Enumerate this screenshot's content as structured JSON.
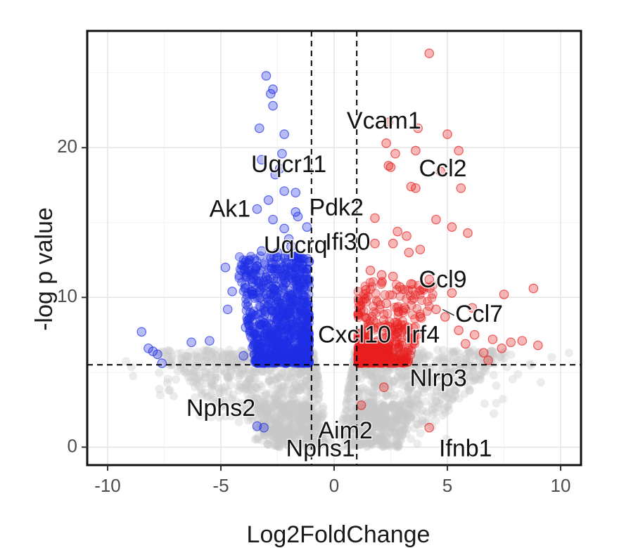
{
  "chart_data": {
    "type": "scatter",
    "xlabel": "Log2FoldChange",
    "ylabel": "-log p value",
    "xlim": [
      -10.9,
      10.9
    ],
    "ylim": [
      -1.2,
      27.8
    ],
    "x_ticks": [
      -10,
      -5,
      0,
      5,
      10
    ],
    "x_tick_labels": [
      "-10",
      "-5",
      "0",
      "5",
      "10"
    ],
    "y_ticks": [
      0,
      10,
      20
    ],
    "y_tick_labels": [
      "0",
      "10",
      "20"
    ],
    "grid": true,
    "thresholds": {
      "x": [
        -1,
        1
      ],
      "y": 5.5
    },
    "colors": {
      "down": "#1f2fe6",
      "up": "#e81e1e",
      "ns": "#c8c8c8"
    },
    "series": [
      {
        "group": "down",
        "points": [
          [
            -3.0,
            24.8
          ],
          [
            -2.7,
            23.9
          ],
          [
            -2.8,
            23.6
          ],
          [
            -2.7,
            22.8
          ],
          [
            -3.3,
            21.3
          ],
          [
            -2.2,
            20.9
          ],
          [
            -2.3,
            19.6
          ],
          [
            -3.2,
            19.2
          ],
          [
            -2.4,
            18.6
          ],
          [
            -2.6,
            18.2
          ],
          [
            -1.7,
            17.0
          ],
          [
            -2.2,
            17.1
          ],
          [
            -2.9,
            16.5
          ],
          [
            -3.4,
            15.9
          ],
          [
            -1.7,
            15.7
          ],
          [
            -1.6,
            15.4
          ],
          [
            -2.7,
            15.2
          ],
          [
            -2.2,
            14.6
          ],
          [
            -1.2,
            14.7
          ],
          [
            -2.0,
            13.9
          ],
          [
            -1.9,
            13.4
          ],
          [
            -3.2,
            13.1
          ],
          [
            -2.5,
            13.0
          ],
          [
            -1.5,
            12.6
          ],
          [
            -1.1,
            12.4
          ],
          [
            -3.4,
            12.1
          ],
          [
            -3.8,
            12.3
          ],
          [
            -4.8,
            12.0
          ],
          [
            -2.6,
            11.8
          ],
          [
            -1.9,
            11.7
          ],
          [
            -3.6,
            11.0
          ],
          [
            -2.7,
            10.6
          ],
          [
            -1.6,
            10.6
          ],
          [
            -4.5,
            10.4
          ],
          [
            -3.0,
            10.2
          ],
          [
            -2.2,
            10.0
          ],
          [
            -4.7,
            9.2
          ],
          [
            -3.7,
            9.0
          ],
          [
            -1.3,
            9.1
          ],
          [
            -2.4,
            8.7
          ],
          [
            -3.1,
            8.3
          ],
          [
            -1.8,
            8.2
          ],
          [
            -3.9,
            8.0
          ],
          [
            -2.0,
            7.5
          ],
          [
            -1.2,
            7.6
          ],
          [
            -2.9,
            7.3
          ],
          [
            -5.5,
            7.1
          ],
          [
            -3.5,
            6.9
          ],
          [
            -2.3,
            6.6
          ],
          [
            -1.5,
            6.4
          ],
          [
            -4.0,
            6.1
          ],
          [
            -2.7,
            6.0
          ],
          [
            -1.9,
            5.9
          ],
          [
            -3.2,
            5.8
          ],
          [
            -8.5,
            7.7
          ],
          [
            -8.2,
            6.6
          ],
          [
            -8.0,
            6.4
          ],
          [
            -7.8,
            6.2
          ],
          [
            -7.6,
            5.6
          ],
          [
            -6.3,
            7.0
          ],
          [
            -3.1,
            1.3
          ],
          [
            -3.4,
            1.4
          ]
        ]
      },
      {
        "group": "up",
        "points": [
          [
            4.2,
            26.3
          ],
          [
            2.4,
            21.7
          ],
          [
            3.7,
            21.3
          ],
          [
            5.0,
            20.9
          ],
          [
            2.3,
            20.3
          ],
          [
            3.6,
            19.8
          ],
          [
            2.7,
            19.6
          ],
          [
            5.5,
            19.8
          ],
          [
            2.4,
            18.8
          ],
          [
            4.7,
            18.4
          ],
          [
            2.5,
            18.7
          ],
          [
            3.4,
            17.4
          ],
          [
            3.6,
            17.3
          ],
          [
            5.6,
            17.3
          ],
          [
            1.8,
            15.3
          ],
          [
            4.5,
            15.2
          ],
          [
            5.2,
            14.7
          ],
          [
            5.9,
            14.3
          ],
          [
            2.8,
            14.4
          ],
          [
            3.2,
            14.1
          ],
          [
            2.6,
            13.6
          ],
          [
            1.8,
            13.6
          ],
          [
            3.8,
            13.2
          ],
          [
            3.3,
            13.0
          ],
          [
            1.6,
            11.8
          ],
          [
            2.1,
            11.5
          ],
          [
            2.6,
            11.4
          ],
          [
            4.2,
            11.2
          ],
          [
            3.4,
            10.9
          ],
          [
            2.9,
            10.7
          ],
          [
            1.4,
            10.5
          ],
          [
            5.2,
            10.3
          ],
          [
            7.5,
            10.2
          ],
          [
            8.8,
            10.6
          ],
          [
            4.5,
            9.2
          ],
          [
            2.3,
            9.6
          ],
          [
            3.1,
            9.3
          ],
          [
            6.1,
            9.3
          ],
          [
            3.8,
            8.7
          ],
          [
            4.9,
            8.7
          ],
          [
            2.8,
            8.2
          ],
          [
            5.5,
            7.8
          ],
          [
            6.2,
            7.5
          ],
          [
            7.0,
            7.2
          ],
          [
            3.5,
            7.3
          ],
          [
            5.8,
            6.9
          ],
          [
            7.8,
            7.0
          ],
          [
            8.3,
            7.1
          ],
          [
            9.0,
            6.8
          ],
          [
            7.4,
            6.6
          ],
          [
            6.6,
            6.3
          ],
          [
            6.8,
            5.8
          ],
          [
            2.0,
            6.3
          ],
          [
            2.6,
            6.0
          ],
          [
            1.7,
            5.9
          ],
          [
            3.0,
            5.7
          ],
          [
            1.5,
            6.6
          ],
          [
            1.9,
            7.0
          ],
          [
            2.2,
            4.0
          ],
          [
            1.2,
            2.8
          ],
          [
            4.2,
            1.3
          ],
          [
            1.5,
            7.5
          ],
          [
            1.3,
            6.2
          ],
          [
            2.4,
            6.8
          ]
        ]
      }
    ],
    "labels": [
      {
        "text": "Vcam1",
        "x": 2.2,
        "y": 21.7
      },
      {
        "text": "Uqcr11",
        "x": -2.0,
        "y": 18.8
      },
      {
        "text": "Ccl2",
        "x": 4.8,
        "y": 18.5
      },
      {
        "text": "Ak1",
        "x": -4.6,
        "y": 15.8
      },
      {
        "text": "Pdk2",
        "x": 0.1,
        "y": 15.9
      },
      {
        "text": "Uqcrq",
        "x": -1.7,
        "y": 13.4
      },
      {
        "text": "Ifi30",
        "x": 0.6,
        "y": 13.6
      },
      {
        "text": "Ccl9",
        "x": 4.8,
        "y": 11.1
      },
      {
        "text": "Ccl7",
        "x": 6.4,
        "y": 8.8
      },
      {
        "text": "Cxcl10",
        "x": 0.9,
        "y": 7.4
      },
      {
        "text": "Irf4",
        "x": 3.9,
        "y": 7.4
      },
      {
        "text": "Nlrp3",
        "x": 4.6,
        "y": 4.5
      },
      {
        "text": "Nphs2",
        "x": -5.0,
        "y": 2.5
      },
      {
        "text": "Aim2",
        "x": 0.5,
        "y": 1.0
      },
      {
        "text": "Nphs1",
        "x": -0.6,
        "y": -0.2
      },
      {
        "text": "Ifnb1",
        "x": 5.8,
        "y": -0.2
      }
    ],
    "label_leaders": [
      {
        "from": [
          4.6,
          9.2
        ],
        "to": [
          5.3,
          8.8
        ]
      }
    ]
  }
}
